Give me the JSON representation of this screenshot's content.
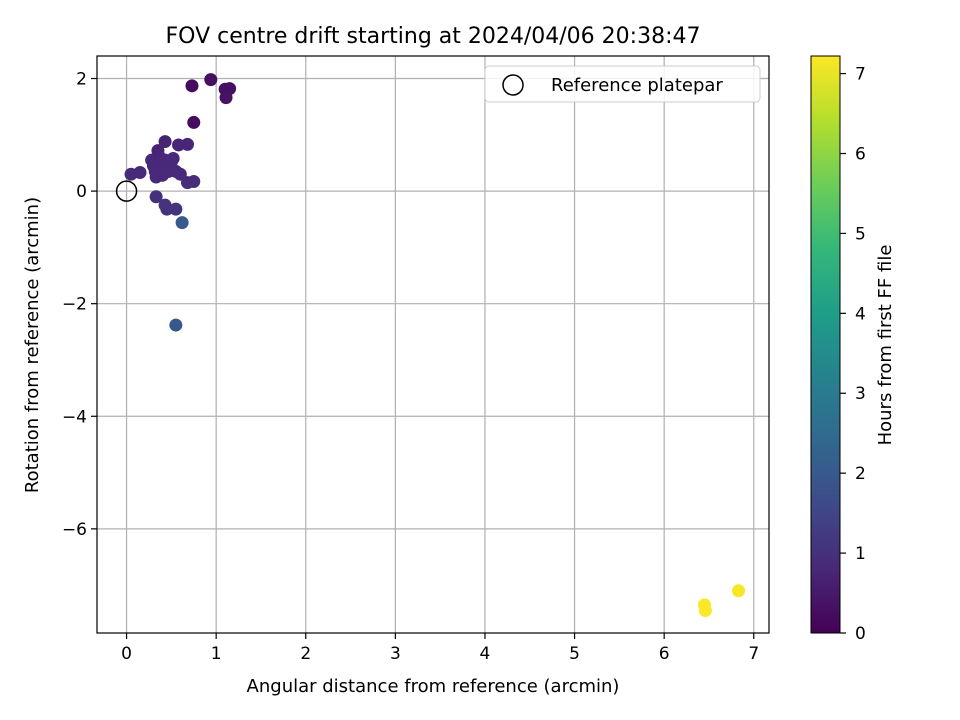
{
  "chart_data": {
    "type": "scatter",
    "title": "FOV centre drift starting at 2024/04/06 20:38:47",
    "xlabel": "Angular distance from reference (arcmin)",
    "ylabel": "Rotation from reference (arcmin)",
    "xlim": [
      -0.33,
      7.17
    ],
    "ylim": [
      -7.85,
      2.4
    ],
    "xticks": [
      0,
      1,
      2,
      3,
      4,
      5,
      6,
      7
    ],
    "yticks": [
      -6,
      -4,
      -2,
      0,
      2
    ],
    "grid": true,
    "legend": {
      "placement": "top-right",
      "entries": [
        "Reference platepar"
      ]
    },
    "reference_point": {
      "x": 0,
      "y": 0,
      "label": "Reference platepar"
    },
    "colorbar": {
      "label": "Hours from first FF file",
      "range": [
        0,
        7.22
      ],
      "ticks": [
        0,
        1,
        2,
        3,
        4,
        5,
        6,
        7
      ],
      "colormap": "viridis"
    },
    "points": [
      {
        "x": 0.05,
        "y": 0.3,
        "c": 0.85
      },
      {
        "x": 0.15,
        "y": 0.33,
        "c": 0.85
      },
      {
        "x": 0.28,
        "y": 0.55,
        "c": 0.8
      },
      {
        "x": 0.3,
        "y": 0.45,
        "c": 0.8
      },
      {
        "x": 0.32,
        "y": 0.35,
        "c": 0.85
      },
      {
        "x": 0.33,
        "y": 0.25,
        "c": 0.85
      },
      {
        "x": 0.35,
        "y": 0.72,
        "c": 0.7
      },
      {
        "x": 0.37,
        "y": 0.6,
        "c": 0.75
      },
      {
        "x": 0.38,
        "y": 0.5,
        "c": 0.8
      },
      {
        "x": 0.4,
        "y": 0.4,
        "c": 0.8
      },
      {
        "x": 0.4,
        "y": 0.28,
        "c": 0.85
      },
      {
        "x": 0.43,
        "y": 0.88,
        "c": 0.7
      },
      {
        "x": 0.43,
        "y": 0.55,
        "c": 0.8
      },
      {
        "x": 0.45,
        "y": 0.45,
        "c": 0.8
      },
      {
        "x": 0.47,
        "y": 0.35,
        "c": 0.85
      },
      {
        "x": 0.5,
        "y": 0.52,
        "c": 0.8
      },
      {
        "x": 0.52,
        "y": 0.58,
        "c": 0.8
      },
      {
        "x": 0.55,
        "y": 0.35,
        "c": 0.85
      },
      {
        "x": 0.58,
        "y": 0.82,
        "c": 0.75
      },
      {
        "x": 0.6,
        "y": 0.3,
        "c": 0.85
      },
      {
        "x": 0.68,
        "y": 0.83,
        "c": 0.75
      },
      {
        "x": 0.68,
        "y": 0.15,
        "c": 0.9
      },
      {
        "x": 0.75,
        "y": 0.17,
        "c": 0.9
      },
      {
        "x": 0.33,
        "y": -0.1,
        "c": 1.0
      },
      {
        "x": 0.43,
        "y": -0.25,
        "c": 1.05
      },
      {
        "x": 0.45,
        "y": -0.32,
        "c": 1.05
      },
      {
        "x": 0.55,
        "y": -0.32,
        "c": 1.05
      },
      {
        "x": 0.62,
        "y": -0.56,
        "c": 2.0
      },
      {
        "x": 0.55,
        "y": -2.38,
        "c": 1.95
      },
      {
        "x": 0.73,
        "y": 1.87,
        "c": 0.25
      },
      {
        "x": 0.75,
        "y": 1.22,
        "c": 0.2
      },
      {
        "x": 0.94,
        "y": 1.98,
        "c": 0.3
      },
      {
        "x": 1.1,
        "y": 1.81,
        "c": 0.3
      },
      {
        "x": 1.15,
        "y": 1.82,
        "c": 0.3
      },
      {
        "x": 1.11,
        "y": 1.66,
        "c": 0.35
      },
      {
        "x": 6.45,
        "y": -7.35,
        "c": 7.2
      },
      {
        "x": 6.46,
        "y": -7.45,
        "c": 7.2
      },
      {
        "x": 6.83,
        "y": -7.1,
        "c": 7.15
      }
    ]
  }
}
